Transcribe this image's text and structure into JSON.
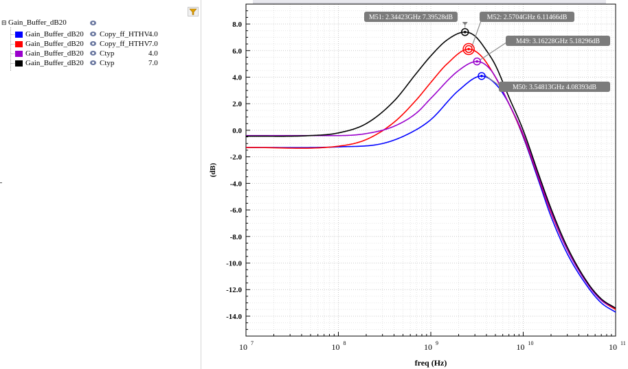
{
  "legend": {
    "root_label": "Gain_Buffer_dB20",
    "rows": [
      {
        "color": "#0000ff",
        "name": "Gain_Buffer_dB20",
        "corner": "Copy_ff_HTHV",
        "temp": "4.0"
      },
      {
        "color": "#ff0000",
        "name": "Gain_Buffer_dB20",
        "corner": "Copy_ff_HTHV",
        "temp": "7.0"
      },
      {
        "color": "#9900cc",
        "name": "Gain_Buffer_dB20",
        "corner": "Ctyp",
        "temp": "4.0"
      },
      {
        "color": "#000000",
        "name": "Gain_Buffer_dB20",
        "corner": "Ctyp",
        "temp": "7.0"
      }
    ]
  },
  "icons": {
    "filter": "filter-funnel-icon",
    "visibility": "eye-icon",
    "expander": "collapse-minus-icon"
  },
  "chart_data": {
    "type": "line",
    "title": "",
    "xlabel": "freq (Hz)",
    "ylabel": "(dB)",
    "x_scale": "log",
    "xlim": [
      10000000.0,
      100000000000.0
    ],
    "ylim": [
      -15.5,
      9.5
    ],
    "grid": true,
    "y_ticks": [
      "8.0",
      "6.0",
      "4.0",
      "2.0",
      "0.0",
      "-2.0",
      "-4.0",
      "-6.0",
      "-8.0",
      "-10.0",
      "-12.0",
      "-14.0"
    ],
    "y_tick_values": [
      8,
      6,
      4,
      2,
      0,
      -2,
      -4,
      -6,
      -8,
      -10,
      -12,
      -14
    ],
    "x_ticks": [
      {
        "value": 10000000.0,
        "base": "10",
        "exp": "7"
      },
      {
        "value": 100000000.0,
        "base": "10",
        "exp": "8"
      },
      {
        "value": 1000000000.0,
        "base": "10",
        "exp": "9"
      },
      {
        "value": 10000000000.0,
        "base": "10",
        "exp": "10"
      },
      {
        "value": 100000000000.0,
        "base": "10",
        "exp": "11"
      }
    ],
    "series": [
      {
        "color": "#0000ff",
        "x": [
          10000000.0,
          100000000.0,
          300000000.0,
          600000000.0,
          1000000000.0,
          2000000000.0,
          3548130000.0,
          5000000000.0,
          7000000000.0,
          10000000000.0,
          15000000000.0,
          20000000000.0,
          30000000000.0,
          50000000000.0,
          70000000000.0,
          100000000000.0
        ],
        "y": [
          -1.3,
          -1.25,
          -1.0,
          -0.2,
          0.8,
          3.0,
          4.08393,
          3.5,
          2.0,
          -0.5,
          -4.0,
          -6.5,
          -9.3,
          -11.8,
          -13.0,
          -13.7
        ]
      },
      {
        "color": "#ff0000",
        "x": [
          10000000.0,
          100000000.0,
          200000000.0,
          400000000.0,
          700000000.0,
          1000000000.0,
          1500000000.0,
          2570400000.0,
          3500000000.0,
          5000000000.0,
          7000000000.0,
          10000000000.0,
          15000000000.0,
          20000000000.0,
          30000000000.0,
          50000000000.0,
          70000000000.0,
          100000000000.0
        ],
        "y": [
          -1.3,
          -1.2,
          -0.7,
          0.6,
          2.3,
          3.6,
          5.0,
          6.11466,
          5.6,
          4.0,
          2.0,
          -0.4,
          -3.8,
          -6.2,
          -9.0,
          -11.6,
          -12.8,
          -13.5
        ]
      },
      {
        "color": "#9900cc",
        "x": [
          10000000.0,
          100000000.0,
          200000000.0,
          400000000.0,
          700000000.0,
          1000000000.0,
          2000000000.0,
          3162280000.0,
          4500000000.0,
          7000000000.0,
          10000000000.0,
          15000000000.0,
          20000000000.0,
          30000000000.0,
          50000000000.0,
          70000000000.0,
          100000000000.0
        ],
        "y": [
          -0.4,
          -0.4,
          -0.25,
          0.3,
          1.3,
          2.4,
          4.5,
          5.18296,
          4.5,
          2.0,
          -0.3,
          -3.7,
          -6.1,
          -9.0,
          -11.6,
          -12.8,
          -13.4
        ]
      },
      {
        "color": "#000000",
        "x": [
          10000000.0,
          50000000.0,
          100000000.0,
          200000000.0,
          400000000.0,
          700000000.0,
          1000000000.0,
          1500000000.0,
          2344230000.0,
          3000000000.0,
          4000000000.0,
          5000000000.0,
          7000000000.0,
          10000000000.0,
          15000000000.0,
          20000000000.0,
          30000000000.0,
          50000000000.0,
          70000000000.0,
          100000000000.0
        ],
        "y": [
          -0.45,
          -0.4,
          -0.2,
          0.5,
          2.2,
          4.3,
          5.6,
          6.8,
          7.39528,
          7.1,
          6.0,
          4.9,
          2.5,
          0.0,
          -3.5,
          -5.9,
          -8.8,
          -11.5,
          -12.7,
          -13.4
        ]
      }
    ],
    "markers": [
      {
        "id": "M51",
        "label": "M51: 2.34423GHz 7.39528dB",
        "x": 2344230000.0,
        "y": 7.39528,
        "color": "#000000"
      },
      {
        "id": "M52",
        "label": "M52: 2.5704GHz 6.11466dB",
        "x": 2570400000.0,
        "y": 6.11466,
        "color": "#ff0000"
      },
      {
        "id": "M49",
        "label": "M49: 3.16228GHz 5.18296dB",
        "x": 3162280000.0,
        "y": 5.18296,
        "color": "#9900cc"
      },
      {
        "id": "M50",
        "label": "M50: 3.54813GHz 4.08393dB",
        "x": 3548130000.0,
        "y": 4.08393,
        "color": "#0000ff"
      }
    ]
  }
}
